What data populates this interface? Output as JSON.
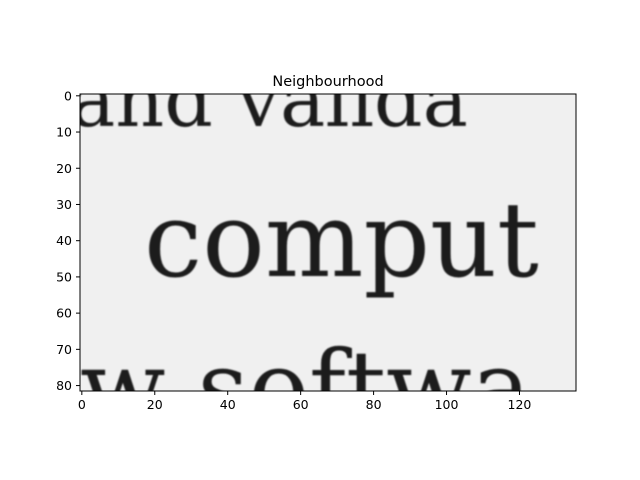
{
  "title": "Neighbourhood",
  "image": {
    "background_color": "#f0f0f0",
    "ink_color": "#1e1e1e",
    "text_lines": [
      "and valida",
      "comput",
      "w softwa"
    ]
  },
  "chart_data": {
    "type": "heatmap",
    "title": "Neighbourhood",
    "colormap": "gray",
    "xlim": [
      0,
      136
    ],
    "ylim": [
      82,
      0
    ],
    "x_ticks": [
      0,
      20,
      40,
      60,
      80,
      100,
      120
    ],
    "y_ticks": [
      0,
      10,
      20,
      30,
      40,
      50,
      60,
      70,
      80
    ],
    "grid": false,
    "legend": "none"
  }
}
